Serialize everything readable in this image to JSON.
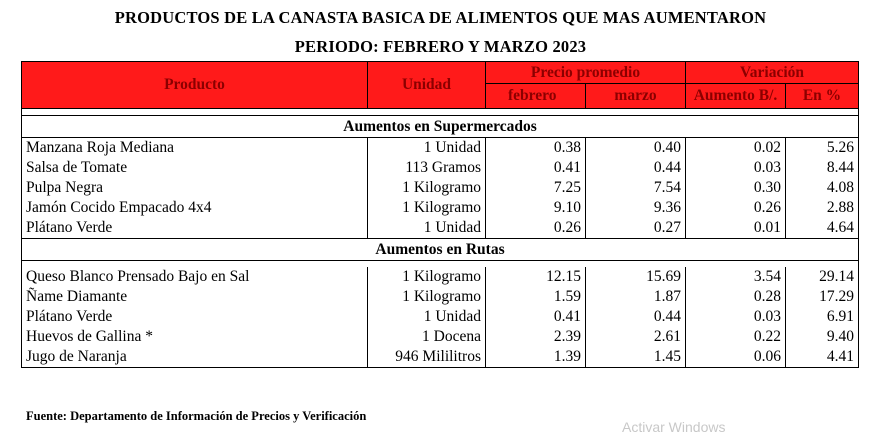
{
  "title_line1": "PRODUCTOS DE LA CANASTA BASICA DE ALIMENTOS QUE MAS AUMENTARON",
  "title_line2": "PERIODO: FEBRERO Y MARZO 2023",
  "header": {
    "producto": "Producto",
    "unidad": "Unidad",
    "precio_promedio": "Precio promedio",
    "febrero": "febrero",
    "marzo": "marzo",
    "variacion": "Variación",
    "aumento": "Aumento B/.",
    "en_pct": "En %"
  },
  "sections": [
    {
      "title": "Aumentos en Supermercados",
      "rows": [
        {
          "producto": "Manzana Roja Mediana",
          "unidad": "1 Unidad",
          "febrero": "0.38",
          "marzo": "0.40",
          "aumento": "0.02",
          "pct": "5.26"
        },
        {
          "producto": "Salsa de Tomate",
          "unidad": "113 Gramos",
          "febrero": "0.41",
          "marzo": "0.44",
          "aumento": "0.03",
          "pct": "8.44"
        },
        {
          "producto": "Pulpa Negra",
          "unidad": "1 Kilogramo",
          "febrero": "7.25",
          "marzo": "7.54",
          "aumento": "0.30",
          "pct": "4.08"
        },
        {
          "producto": "Jamón Cocido Empacado 4x4",
          "unidad": "1 Kilogramo",
          "febrero": "9.10",
          "marzo": "9.36",
          "aumento": "0.26",
          "pct": "2.88"
        },
        {
          "producto": "Plátano Verde",
          "unidad": "1 Unidad",
          "febrero": "0.26",
          "marzo": "0.27",
          "aumento": "0.01",
          "pct": "4.64"
        }
      ]
    },
    {
      "title": "Aumentos en Rutas",
      "rows": [
        {
          "producto": "Queso Blanco Prensado Bajo en Sal",
          "unidad": "1 Kilogramo",
          "febrero": "12.15",
          "marzo": "15.69",
          "aumento": "3.54",
          "pct": "29.14"
        },
        {
          "producto": "Ñame Diamante",
          "unidad": "1 Kilogramo",
          "febrero": "1.59",
          "marzo": "1.87",
          "aumento": "0.28",
          "pct": "17.29"
        },
        {
          "producto": "Plátano Verde",
          "unidad": "1 Unidad",
          "febrero": "0.41",
          "marzo": "0.44",
          "aumento": "0.03",
          "pct": "6.91"
        },
        {
          "producto": "Huevos de Gallina *",
          "unidad": "1 Docena",
          "febrero": "2.39",
          "marzo": "2.61",
          "aumento": "0.22",
          "pct": "9.40"
        },
        {
          "producto": "Jugo de Naranja",
          "unidad": "946 Mililitros",
          "febrero": "1.39",
          "marzo": "1.45",
          "aumento": "0.06",
          "pct": "4.41"
        }
      ]
    }
  ],
  "source": "Fuente:  Departamento de Información  de Precios y Verificación",
  "watermark": "Activar Windows"
}
